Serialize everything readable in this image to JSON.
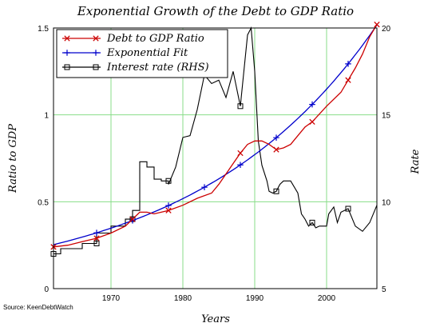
{
  "chart_data": {
    "type": "line",
    "title": "Exponential Growth of the Debt to GDP Ratio",
    "xlabel": "Years",
    "ylabel": "Ratio to GDP",
    "y2label": "Rate",
    "source": "Source: KeenDebtWatch",
    "xlim": [
      1962,
      2007
    ],
    "ylim": [
      0,
      1.5
    ],
    "y2lim": [
      5,
      20
    ],
    "xticks": [
      "1970",
      "1980",
      "1990",
      "2000"
    ],
    "yticks": [
      "0",
      "0.5",
      "1",
      "1.5"
    ],
    "y2ticks": [
      "5",
      "10",
      "15",
      "20"
    ],
    "grid": true,
    "legend_position": "top-left",
    "colors": {
      "debt": "#cc0000",
      "fit": "#0000cc",
      "rate": "#000000",
      "grid": "#88dd88"
    },
    "series": [
      {
        "name": "Debt to GDP Ratio",
        "axis": "left",
        "marker": "x",
        "x": [
          1962,
          1964,
          1966,
          1968,
          1970,
          1972,
          1973,
          1974,
          1975,
          1976,
          1978,
          1980,
          1982,
          1984,
          1985,
          1986,
          1987,
          1988,
          1989,
          1990,
          1991,
          1992,
          1993,
          1994,
          1995,
          1996,
          1997,
          1998,
          2000,
          2002,
          2003,
          2004,
          2005,
          2006,
          2007
        ],
        "y": [
          0.24,
          0.25,
          0.27,
          0.29,
          0.32,
          0.36,
          0.4,
          0.44,
          0.44,
          0.43,
          0.45,
          0.48,
          0.52,
          0.55,
          0.6,
          0.66,
          0.72,
          0.78,
          0.83,
          0.85,
          0.85,
          0.83,
          0.8,
          0.81,
          0.83,
          0.88,
          0.93,
          0.96,
          1.05,
          1.13,
          1.2,
          1.27,
          1.35,
          1.45,
          1.52
        ]
      },
      {
        "name": "Exponential Fit",
        "axis": "left",
        "marker": "+",
        "fit": {
          "a": 0.253,
          "b": 0.0398,
          "x0": 1962
        }
      },
      {
        "name": "Interest rate (RHS)",
        "axis": "right",
        "marker": "square",
        "x": [
          1962,
          1963,
          1963,
          1966,
          1966,
          1968,
          1968,
          1970,
          1970,
          1972,
          1972,
          1973,
          1973,
          1974,
          1974,
          1975,
          1975,
          1976,
          1976,
          1977,
          1977,
          1978,
          1978,
          1979,
          1980,
          1981,
          1982,
          1983,
          1984,
          1985,
          1986,
          1987,
          1988,
          1989,
          1989.5,
          1990,
          1990.5,
          1991,
          1991.7,
          1992,
          1992.5,
          1993,
          1993.5,
          1994,
          1995,
          1996,
          1996.5,
          1997,
          1997.5,
          1998,
          1998.5,
          1999,
          2000,
          2000.3,
          2001,
          2001.5,
          2002,
          2003,
          2004,
          2005,
          2006,
          2007
        ],
        "y": [
          7.0,
          7.0,
          7.3,
          7.3,
          7.6,
          7.6,
          8.2,
          8.2,
          8.6,
          8.6,
          9.0,
          9.0,
          9.5,
          9.5,
          12.3,
          12.3,
          12.0,
          12.0,
          11.3,
          11.3,
          11.2,
          11.2,
          11.0,
          12.0,
          13.7,
          13.8,
          15.3,
          17.3,
          16.8,
          17.0,
          16.0,
          17.5,
          15.5,
          19.6,
          20.0,
          17.5,
          13.5,
          12.1,
          11.2,
          10.6,
          10.5,
          10.6,
          11.0,
          11.2,
          11.2,
          10.5,
          9.3,
          9.0,
          8.6,
          8.8,
          8.5,
          8.6,
          8.6,
          9.3,
          9.7,
          8.8,
          9.4,
          9.6,
          8.6,
          8.3,
          8.8,
          9.8
        ]
      }
    ]
  }
}
